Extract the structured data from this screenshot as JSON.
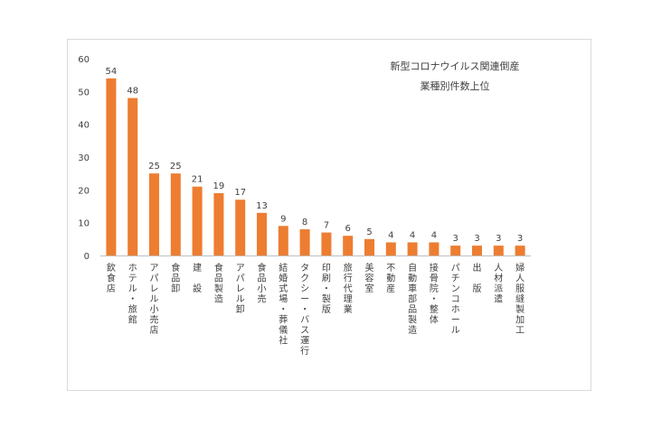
{
  "chart_data": {
    "type": "bar",
    "title_lines": [
      "新型コロナウイルス関連倒産",
      "業種別件数上位"
    ],
    "categories": [
      "飲食店",
      "ホテル・旅館",
      "アパレル小売店",
      "食品卸",
      "建 設",
      "食品製造",
      "アパレル卸",
      "食品小売",
      "結婚式場・葬儀社",
      "タクシー・バス運行",
      "印刷・製版",
      "旅行代理業",
      "美容室",
      "不動産",
      "自動車部品製造",
      "接骨院・整体",
      "パチンコホール",
      "出 版",
      "人材派遣",
      "婦人服縫製加工"
    ],
    "values": [
      54,
      48,
      25,
      25,
      21,
      19,
      17,
      13,
      9,
      8,
      7,
      6,
      5,
      4,
      4,
      4,
      3,
      3,
      3,
      3
    ],
    "data_labels": [
      "54",
      "48",
      "25",
      "25",
      "21",
      "19",
      "17",
      "13",
      "9",
      "8",
      "7",
      "6",
      "5",
      "4",
      "4",
      "4",
      "3",
      "3",
      "3",
      "3"
    ],
    "y_ticks": [
      "0",
      "10",
      "20",
      "30",
      "40",
      "50",
      "60"
    ],
    "ylim": [
      0,
      60
    ],
    "grid": false,
    "legend": "none",
    "bar_color": "#ed7d31"
  }
}
